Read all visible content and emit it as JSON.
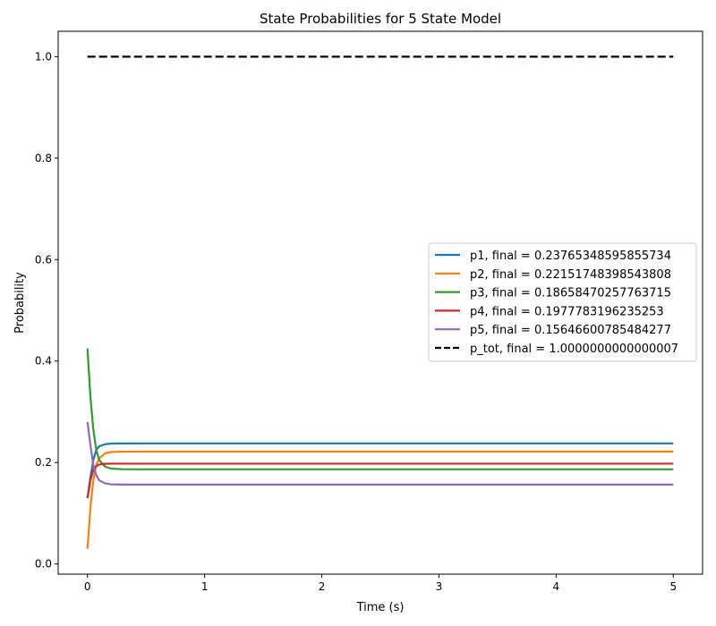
{
  "chart_data": {
    "type": "line",
    "title": "State Probabilities for 5 State Model",
    "xlabel": "Time (s)",
    "ylabel": "Probability",
    "xlim": [
      -0.25,
      5.25
    ],
    "ylim": [
      -0.02,
      1.05
    ],
    "xticks": [
      0,
      1,
      2,
      3,
      4,
      5
    ],
    "yticks": [
      0.0,
      0.2,
      0.4,
      0.6,
      0.8,
      1.0
    ],
    "xtick_labels": [
      "0",
      "1",
      "2",
      "3",
      "4",
      "5"
    ],
    "ytick_labels": [
      "0.0",
      "0.2",
      "0.4",
      "0.6",
      "0.8",
      "1.0"
    ],
    "grid": false,
    "legend_position": "center-right",
    "x": [
      0,
      0.025,
      0.05,
      0.075,
      0.1,
      0.15,
      0.2,
      0.3,
      0.5,
      1,
      2,
      3,
      4,
      5
    ],
    "series": [
      {
        "name": "p1, final = 0.23765348595855734",
        "color": "#1f77b4",
        "dash": "solid",
        "values": [
          0.13,
          0.17,
          0.205,
          0.225,
          0.232,
          0.236,
          0.2374,
          0.2376,
          0.2377,
          0.2377,
          0.2377,
          0.2377,
          0.2377,
          0.2377
        ]
      },
      {
        "name": "p2, final = 0.22151748398543808",
        "color": "#ff7f0e",
        "dash": "solid",
        "values": [
          0.03,
          0.11,
          0.165,
          0.195,
          0.208,
          0.218,
          0.2208,
          0.2214,
          0.2215,
          0.2215,
          0.2215,
          0.2215,
          0.2215,
          0.2215
        ]
      },
      {
        "name": "p3, final = 0.18658470257763715",
        "color": "#2ca02c",
        "dash": "solid",
        "values": [
          0.425,
          0.33,
          0.265,
          0.225,
          0.205,
          0.192,
          0.188,
          0.1868,
          0.1866,
          0.1866,
          0.1866,
          0.1866,
          0.1866,
          0.1866
        ]
      },
      {
        "name": "p4, final = 0.1977783196235253",
        "color": "#d62728",
        "dash": "solid",
        "values": [
          0.13,
          0.165,
          0.185,
          0.193,
          0.196,
          0.1975,
          0.1978,
          0.1978,
          0.1978,
          0.1978,
          0.1978,
          0.1978,
          0.1978,
          0.1978
        ]
      },
      {
        "name": "p5, final = 0.15646600785484277",
        "color": "#9467bd",
        "dash": "solid",
        "values": [
          0.28,
          0.235,
          0.195,
          0.175,
          0.165,
          0.159,
          0.157,
          0.1565,
          0.1565,
          0.1565,
          0.1565,
          0.1565,
          0.1565,
          0.1565
        ]
      },
      {
        "name": "p_tot, final = 1.0000000000000007",
        "color": "#000000",
        "dash": "dashed",
        "values": [
          1.0,
          1.0,
          1.0,
          1.0,
          1.0,
          1.0,
          1.0,
          1.0,
          1.0,
          1.0,
          1.0,
          1.0,
          1.0,
          1.0
        ]
      }
    ]
  }
}
